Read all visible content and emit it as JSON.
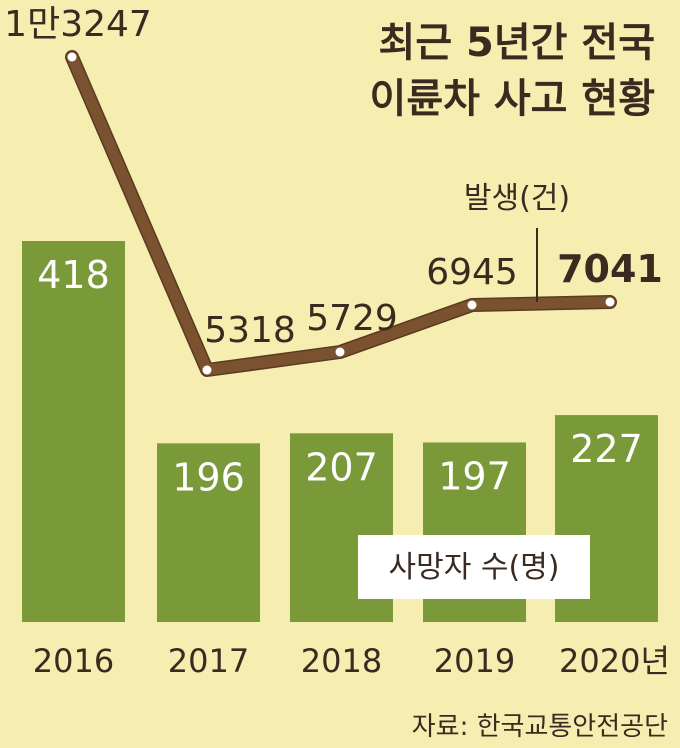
{
  "chart_data": {
    "type": "bar+line",
    "title_lines": [
      "최근 5년간 전국",
      "이륜차 사고 현황"
    ],
    "categories": [
      "2016",
      "2017",
      "2018",
      "2019",
      "2020년"
    ],
    "bar_series": {
      "name": "사망자 수(명)",
      "values": [
        418,
        196,
        207,
        197,
        227
      ],
      "labels": [
        "418",
        "196",
        "207",
        "197",
        "227"
      ],
      "color": "#7a9a3a"
    },
    "line_series": {
      "name": "발생(건)",
      "values": [
        13247,
        5318,
        5729,
        6945,
        7041
      ],
      "labels": [
        "1만3247",
        "5318",
        "5729",
        "6945",
        "7041"
      ],
      "color": "#7a5230"
    },
    "source": "자료: 한국교통안전공단"
  }
}
